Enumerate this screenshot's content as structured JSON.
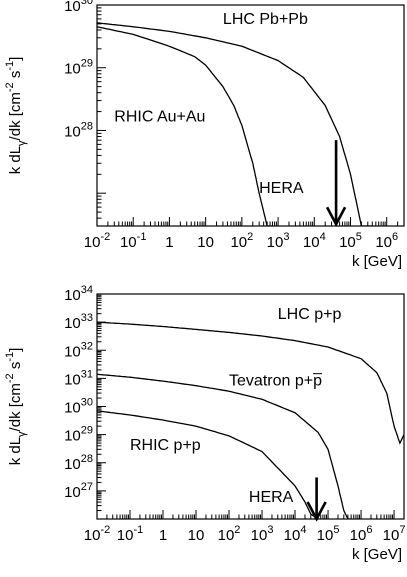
{
  "chart_data": [
    {
      "type": "line",
      "panel": "top",
      "x_scale": "log",
      "y_scale": "log",
      "xlim": [
        0.01,
        3000000
      ],
      "ylim": [
        3e+26,
        1e+30
      ],
      "xlabel": "k [GeV]",
      "ylabel": "k dLγ/dk [cm⁻² s⁻¹]",
      "x_ticks": [
        {
          "v": 0.01,
          "base": "10",
          "exp": "-2"
        },
        {
          "v": 0.1,
          "base": "10",
          "exp": "-1"
        },
        {
          "v": 1,
          "base": "1",
          "exp": ""
        },
        {
          "v": 10,
          "base": "10",
          "exp": ""
        },
        {
          "v": 100,
          "base": "10",
          "exp": "2"
        },
        {
          "v": 1000,
          "base": "10",
          "exp": "3"
        },
        {
          "v": 10000,
          "base": "10",
          "exp": "4"
        },
        {
          "v": 100000,
          "base": "10",
          "exp": "5"
        },
        {
          "v": 1000000,
          "base": "10",
          "exp": "6"
        }
      ],
      "y_ticks": [
        {
          "v": 1e+28,
          "base": "10",
          "exp": "28"
        },
        {
          "v": 1e+29,
          "base": "10",
          "exp": "29"
        },
        {
          "v": 1e+30,
          "base": "10",
          "exp": "30"
        }
      ],
      "series": [
        {
          "name": "LHC Pb+Pb",
          "x": [
            0.01,
            0.1,
            1,
            10,
            100,
            1000,
            5000,
            20000,
            50000,
            100000,
            200000,
            300000,
            400000
          ],
          "y": [
            5.2e+29,
            4.5e+29,
            3.8e+29,
            3e+29,
            2.2e+29,
            1.3e+29,
            7e+28,
            2.5e+28,
            8e+27,
            2e+27,
            3e+26,
            3e+26,
            3e+26
          ]
        },
        {
          "name": "RHIC Au+Au",
          "x": [
            0.01,
            0.1,
            1,
            5,
            10,
            30,
            60,
            100,
            200,
            300,
            500,
            700
          ],
          "y": [
            4.5e+29,
            3.4e+29,
            2.2e+29,
            1.5e+29,
            1.1e+29,
            5e+28,
            2.5e+28,
            1.2e+28,
            3e+27,
            1e+27,
            3e+26,
            3e+26
          ]
        }
      ],
      "annotations": [
        {
          "text": "LHC Pb+Pb",
          "x": 30,
          "y": 5e+29
        },
        {
          "text": "RHIC Au+Au",
          "x": 0.03,
          "y": 1.4e+28
        },
        {
          "text": "HERA",
          "x": 300,
          "y": 1e+27
        },
        {
          "type": "arrow",
          "label": "HERA",
          "x": 40000,
          "y_from": 7e+27,
          "y_to": 3.2e+26
        }
      ]
    },
    {
      "type": "line",
      "panel": "bottom",
      "x_scale": "log",
      "y_scale": "log",
      "xlim": [
        0.01,
        20000000
      ],
      "ylim": [
        1e+26,
        1e+34
      ],
      "xlabel": "k [GeV]",
      "ylabel": "k dLγ/dk [cm⁻² s⁻¹]",
      "x_ticks": [
        {
          "v": 0.01,
          "base": "10",
          "exp": "-2"
        },
        {
          "v": 0.1,
          "base": "10",
          "exp": "-1"
        },
        {
          "v": 1,
          "base": "1",
          "exp": ""
        },
        {
          "v": 10,
          "base": "10",
          "exp": ""
        },
        {
          "v": 100,
          "base": "10",
          "exp": "2"
        },
        {
          "v": 1000,
          "base": "10",
          "exp": "3"
        },
        {
          "v": 10000,
          "base": "10",
          "exp": "4"
        },
        {
          "v": 100000,
          "base": "10",
          "exp": "5"
        },
        {
          "v": 1000000,
          "base": "10",
          "exp": "6"
        },
        {
          "v": 10000000,
          "base": "10",
          "exp": "7"
        }
      ],
      "y_ticks": [
        {
          "v": 1e+27,
          "base": "10",
          "exp": "27"
        },
        {
          "v": 1e+28,
          "base": "10",
          "exp": "28"
        },
        {
          "v": 1e+29,
          "base": "10",
          "exp": "29"
        },
        {
          "v": 1e+30,
          "base": "10",
          "exp": "30"
        },
        {
          "v": 1e+31,
          "base": "10",
          "exp": "31"
        },
        {
          "v": 1e+32,
          "base": "10",
          "exp": "32"
        },
        {
          "v": 1e+33,
          "base": "10",
          "exp": "33"
        },
        {
          "v": 1e+34,
          "base": "10",
          "exp": "34"
        }
      ],
      "series": [
        {
          "name": "LHC p+p",
          "x": [
            0.01,
            0.1,
            1,
            10,
            100,
            1000,
            10000,
            100000,
            1000000,
            3000000,
            6000000,
            10000000,
            15000000,
            20000000
          ],
          "y": [
            1e+33,
            8.5e+32,
            7e+32,
            5.5e+32,
            4.3e+32,
            3.2e+32,
            2.2e+32,
            1.3e+32,
            5e+31,
            1.6e+31,
            3e+30,
            2e+29,
            5e+28,
            1e+29
          ]
        },
        {
          "name": "Tevatron p+p̄",
          "x": [
            0.01,
            0.1,
            1,
            10,
            100,
            1000,
            10000,
            50000,
            100000,
            200000,
            300000,
            400000,
            500000
          ],
          "y": [
            1.4e+31,
            1.1e+31,
            8e+30,
            5.5e+30,
            3.5e+30,
            1.8e+30,
            6e+29,
            1.2e+29,
            3e+28,
            1.5e+27,
            2e+26,
            1e+26,
            1e+26
          ]
        },
        {
          "name": "RHIC p+p",
          "x": [
            0.01,
            0.1,
            1,
            10,
            100,
            1000,
            10000,
            20000,
            30000,
            50000
          ],
          "y": [
            7e+29,
            5e+29,
            3.3e+29,
            2e+29,
            9e+28,
            2.5e+28,
            1.5e+27,
            4e+26,
            1.5e+26,
            1e+26
          ]
        }
      ],
      "annotations": [
        {
          "text": "LHC p+p",
          "x": 3000,
          "y": 1.3e+33
        },
        {
          "text": "Tevatron p+p",
          "x": 100,
          "y": 5.5e+30
        },
        {
          "text": "RHIC p+p",
          "x": 0.1,
          "y": 2.8e+28
        },
        {
          "text": "HERA",
          "x": 400,
          "y": 4e+26
        },
        {
          "type": "arrow",
          "label": "HERA",
          "x": 45000,
          "y_from": 3e+27,
          "y_to": 1e+26
        }
      ]
    }
  ]
}
